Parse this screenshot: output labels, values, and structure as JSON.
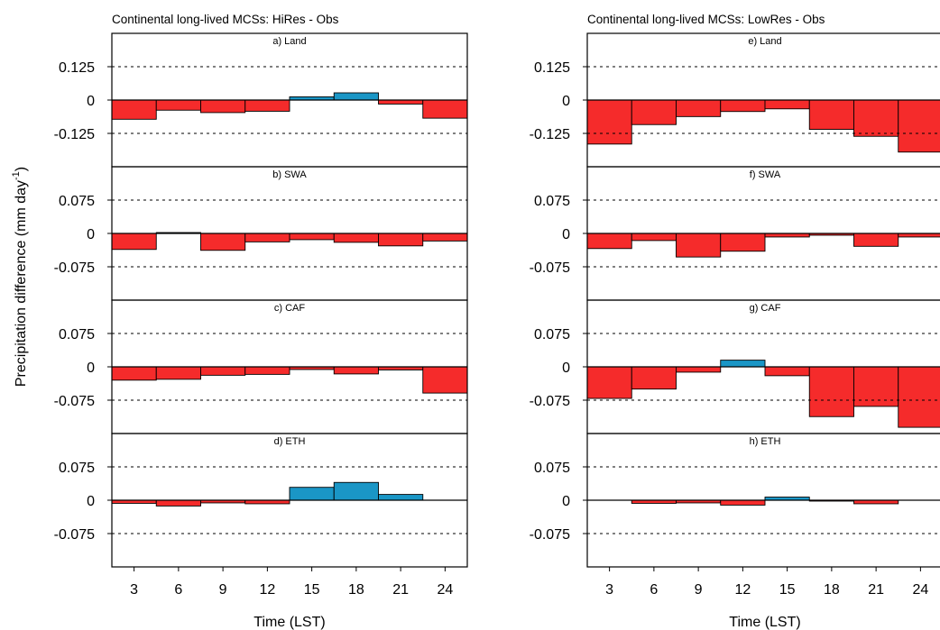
{
  "ylabel": {
    "main": "Precipitation difference (mm day",
    "sup": "-1",
    "tail": ")"
  },
  "colors": {
    "negative": "#f52b2b",
    "positive": "#1a96c6",
    "outline": "#000000"
  },
  "chart_data": [
    {
      "type": "bar",
      "title": "Continental long-lived MCSs: HiRes - Obs",
      "xlabel": "Time (LST)",
      "categories": [
        "3",
        "6",
        "9",
        "12",
        "15",
        "18",
        "21",
        "24"
      ],
      "panels": [
        {
          "label": "a) Land",
          "yticks": [
            0.125,
            0,
            -0.125
          ],
          "ytick_labels": [
            "0.125",
            "0",
            "-0.125"
          ],
          "ylim": [
            -0.25,
            0.25
          ],
          "values": [
            -0.072,
            -0.038,
            -0.047,
            -0.042,
            0.012,
            0.027,
            -0.015,
            -0.068
          ]
        },
        {
          "label": "b) SWA",
          "yticks": [
            0.075,
            0,
            -0.075
          ],
          "ytick_labels": [
            "0.075",
            "0",
            "-0.075"
          ],
          "ylim": [
            -0.15,
            0.15
          ],
          "values": [
            -0.036,
            0.002,
            -0.038,
            -0.019,
            -0.014,
            -0.02,
            -0.028,
            -0.017
          ]
        },
        {
          "label": "c) CAF",
          "yticks": [
            0.075,
            0,
            -0.075
          ],
          "ytick_labels": [
            "0.075",
            "0",
            "-0.075"
          ],
          "ylim": [
            -0.15,
            0.15
          ],
          "values": [
            -0.03,
            -0.028,
            -0.019,
            -0.017,
            -0.006,
            -0.016,
            -0.007,
            -0.059
          ]
        },
        {
          "label": "d) ETH",
          "yticks": [
            0.075,
            0,
            -0.075
          ],
          "ytick_labels": [
            "0.075",
            "0",
            "-0.075"
          ],
          "ylim": [
            -0.15,
            0.15
          ],
          "values": [
            -0.007,
            -0.013,
            -0.006,
            -0.008,
            0.029,
            0.04,
            0.013,
            0.0
          ]
        }
      ]
    },
    {
      "type": "bar",
      "title": "Continental long-lived MCSs: LowRes - Obs",
      "xlabel": "Time (LST)",
      "categories": [
        "3",
        "6",
        "9",
        "12",
        "15",
        "18",
        "21",
        "24"
      ],
      "panels": [
        {
          "label": "e) Land",
          "yticks": [
            0.125,
            0,
            -0.125
          ],
          "ytick_labels": [
            "0.125",
            "0",
            "-0.125"
          ],
          "ylim": [
            -0.25,
            0.25
          ],
          "values": [
            -0.165,
            -0.092,
            -0.062,
            -0.043,
            -0.033,
            -0.11,
            -0.136,
            -0.195
          ]
        },
        {
          "label": "f) SWA",
          "yticks": [
            0.075,
            0,
            -0.075
          ],
          "ytick_labels": [
            "0.075",
            "0",
            "-0.075"
          ],
          "ylim": [
            -0.15,
            0.15
          ],
          "values": [
            -0.034,
            -0.016,
            -0.053,
            -0.04,
            -0.008,
            -0.004,
            -0.029,
            -0.008
          ]
        },
        {
          "label": "g) CAF",
          "yticks": [
            0.075,
            0,
            -0.075
          ],
          "ytick_labels": [
            "0.075",
            "0",
            "-0.075"
          ],
          "ylim": [
            -0.15,
            0.15
          ],
          "values": [
            -0.071,
            -0.05,
            -0.012,
            0.015,
            -0.02,
            -0.112,
            -0.089,
            -0.136
          ]
        },
        {
          "label": "h) ETH",
          "yticks": [
            0.075,
            0,
            -0.075
          ],
          "ytick_labels": [
            "0.075",
            "0",
            "-0.075"
          ],
          "ylim": [
            -0.15,
            0.15
          ],
          "values": [
            0.0,
            -0.007,
            -0.006,
            -0.011,
            0.007,
            -0.002,
            -0.008,
            0.0
          ]
        }
      ]
    }
  ]
}
